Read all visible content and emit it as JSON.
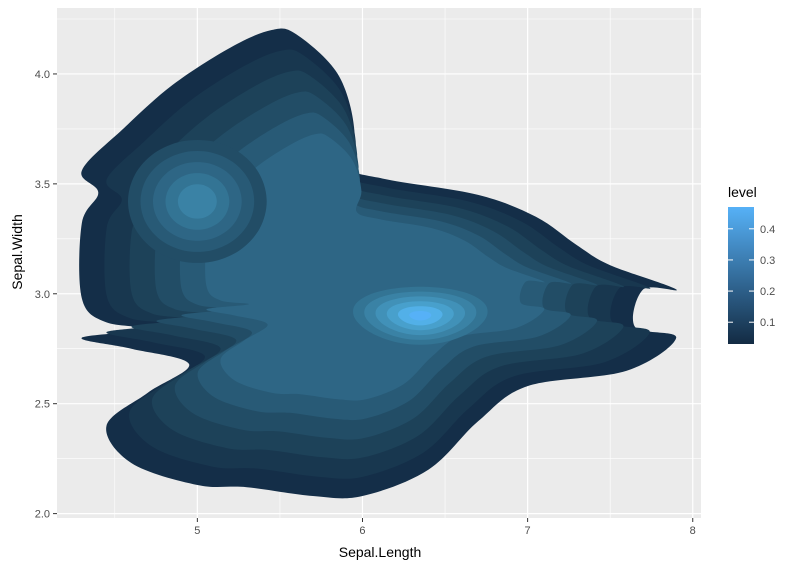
{
  "chart_data": {
    "type": "density_2d_filled",
    "title": "",
    "xlabel": "Sepal.Length",
    "ylabel": "Sepal.Width",
    "xlim": [
      4.15,
      8.05
    ],
    "ylim": [
      1.98,
      4.3
    ],
    "x_ticks": [
      5,
      6,
      7,
      8
    ],
    "x_tick_labels": [
      "5",
      "6",
      "7",
      "8"
    ],
    "y_ticks": [
      2.0,
      2.5,
      3.0,
      3.5,
      4.0
    ],
    "y_tick_labels": [
      "2.0",
      "2.5",
      "3.0",
      "3.5",
      "4.0"
    ],
    "grid": true,
    "panel_background": "#ebebeb",
    "grid_color": "#ffffff",
    "legend": {
      "title": "level",
      "position": "right",
      "range": [
        0.03,
        0.47
      ],
      "ticks": [
        0.1,
        0.2,
        0.3,
        0.4
      ],
      "tick_labels": [
        "0.1",
        "0.2",
        "0.3",
        "0.4"
      ],
      "color_low": "#132b43",
      "color_high": "#56b1f7"
    },
    "density_peaks": [
      {
        "x": 5.0,
        "y": 3.42,
        "level": 0.3
      },
      {
        "x": 6.35,
        "y": 2.9,
        "level": 0.45
      }
    ],
    "level_colors": [
      "#142e48",
      "#18374f",
      "#1d4259",
      "#224d66",
      "#285a76",
      "#2e6685",
      "#337494",
      "#3a82a5",
      "#4191b8",
      "#48a0cc",
      "#52b0e8",
      "#56b1f7"
    ]
  }
}
